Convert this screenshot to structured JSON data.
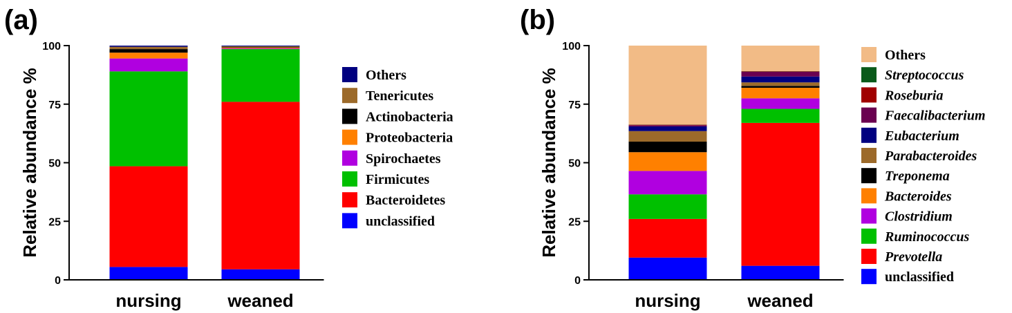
{
  "chart_data": [
    {
      "type": "bar",
      "stacked": true,
      "panel_label": "(a)",
      "ylabel": "Relative abundance %",
      "ylim": [
        0,
        100
      ],
      "yticks": [
        0,
        25,
        50,
        75,
        100
      ],
      "categories": [
        "nursing",
        "weaned"
      ],
      "legend_position": "right",
      "legend_italic": false,
      "series": [
        {
          "name": "unclassified",
          "color": "#0000ff",
          "values": [
            5.5,
            4.5
          ]
        },
        {
          "name": "Bacteroidetes",
          "color": "#ff0000",
          "values": [
            43.0,
            71.5
          ]
        },
        {
          "name": "Firmicutes",
          "color": "#00c000",
          "values": [
            40.5,
            22.5
          ]
        },
        {
          "name": "Spirochaetes",
          "color": "#b000e0",
          "values": [
            5.5,
            0.3
          ]
        },
        {
          "name": "Proteobacteria",
          "color": "#ff8000",
          "values": [
            2.5,
            0.4
          ]
        },
        {
          "name": "Actinobacteria",
          "color": "#000000",
          "values": [
            1.5,
            0.2
          ]
        },
        {
          "name": "Tenericutes",
          "color": "#9c6a2a",
          "values": [
            1.0,
            0.3
          ]
        },
        {
          "name": "Others",
          "color": "#000080",
          "values": [
            0.5,
            0.3
          ]
        }
      ]
    },
    {
      "type": "bar",
      "stacked": true,
      "panel_label": "(b)",
      "ylabel": "Relative abundance %",
      "ylim": [
        0,
        100
      ],
      "yticks": [
        0,
        25,
        50,
        75,
        100
      ],
      "categories": [
        "nursing",
        "weaned"
      ],
      "legend_position": "right",
      "legend_italic": true,
      "series": [
        {
          "name": "unclassified",
          "color": "#0000ff",
          "values": [
            9.5,
            6.0
          ]
        },
        {
          "name": "Prevotella",
          "color": "#ff0000",
          "values": [
            16.5,
            61.0
          ]
        },
        {
          "name": "Ruminococcus",
          "color": "#00c000",
          "values": [
            10.5,
            6.0
          ]
        },
        {
          "name": "Clostridium",
          "color": "#b000e0",
          "values": [
            10.0,
            4.5
          ]
        },
        {
          "name": "Bacteroides",
          "color": "#ff8000",
          "values": [
            8.0,
            4.5
          ]
        },
        {
          "name": "Treponema",
          "color": "#000000",
          "values": [
            4.5,
            0.8
          ]
        },
        {
          "name": "Parabacteroides",
          "color": "#9c6a2a",
          "values": [
            4.5,
            1.5
          ]
        },
        {
          "name": "Eubacterium",
          "color": "#000080",
          "values": [
            2.0,
            2.5
          ]
        },
        {
          "name": "Faecalibacterium",
          "color": "#6a0050",
          "values": [
            0.5,
            2.0
          ]
        },
        {
          "name": "Roseburia",
          "color": "#a00000",
          "values": [
            0.2,
            0.2
          ]
        },
        {
          "name": "Streptococcus",
          "color": "#0a5a1a",
          "values": [
            0.1,
            0.1
          ]
        },
        {
          "name": "Others",
          "color": "#f2bb86",
          "values": [
            33.7,
            10.9
          ]
        }
      ]
    }
  ]
}
